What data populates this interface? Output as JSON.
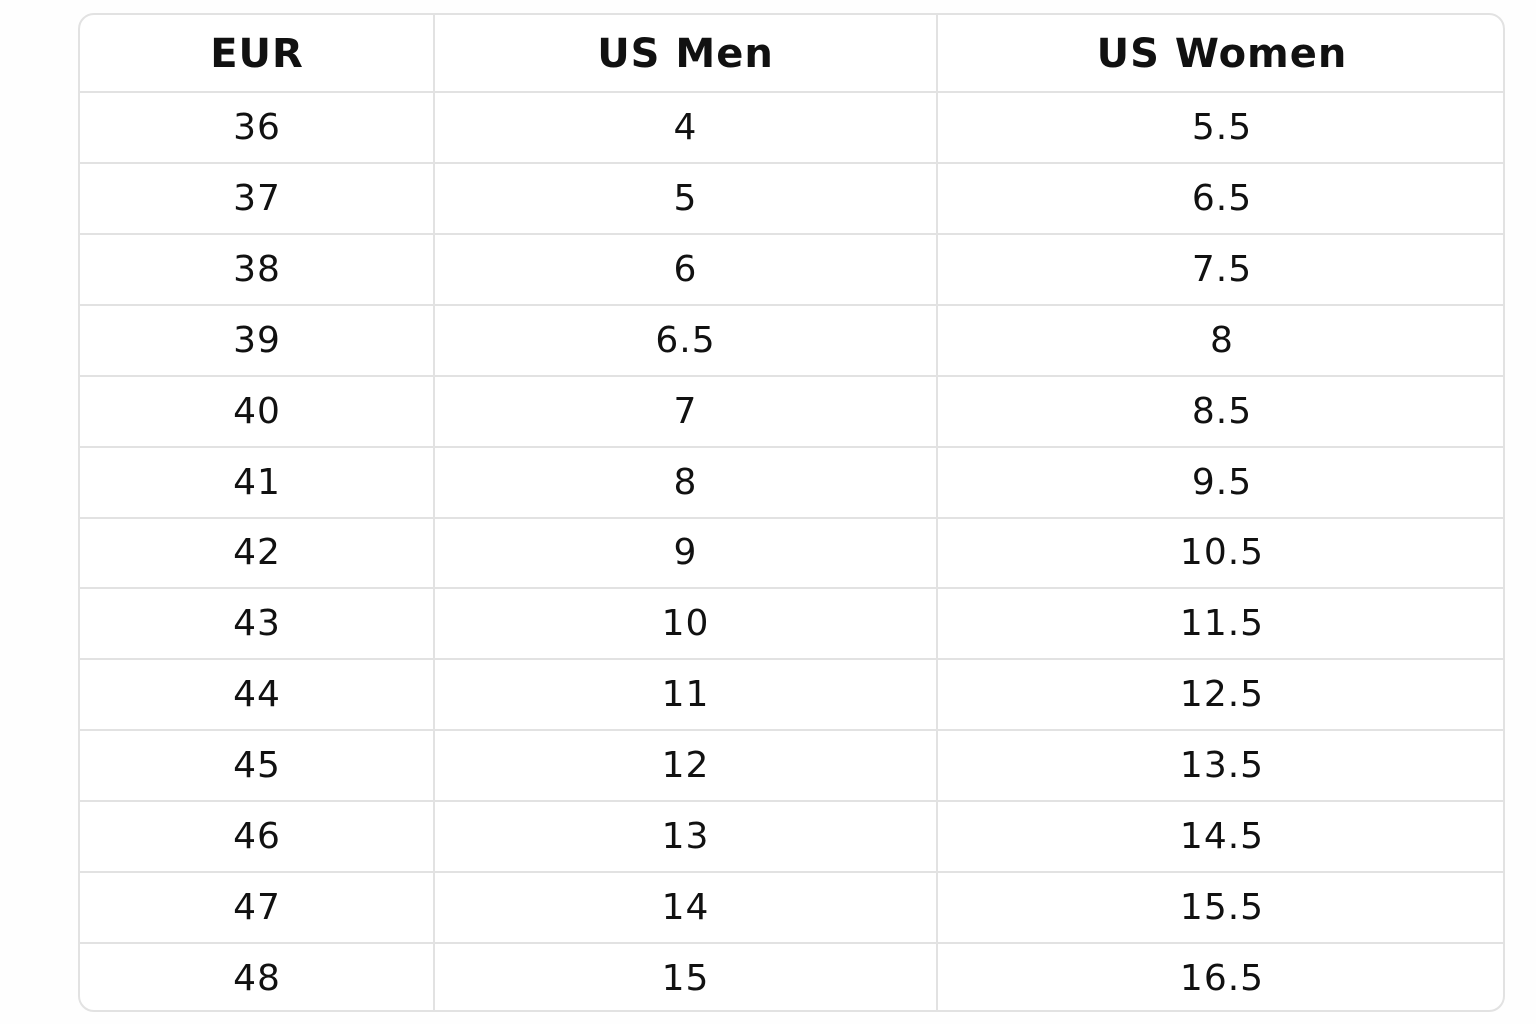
{
  "table": {
    "header": [
      "EUR",
      "US Men",
      "US Women"
    ],
    "rows": [
      [
        "36",
        "4",
        "5.5"
      ],
      [
        "37",
        "5",
        "6.5"
      ],
      [
        "38",
        "6",
        "7.5"
      ],
      [
        "39",
        "6.5",
        "8"
      ],
      [
        "40",
        "7",
        "8.5"
      ],
      [
        "41",
        "8",
        "9.5"
      ],
      [
        "42",
        "9",
        "10.5"
      ],
      [
        "43",
        "10",
        "11.5"
      ],
      [
        "44",
        "11",
        "12.5"
      ],
      [
        "45",
        "12",
        "13.5"
      ],
      [
        "46",
        "13",
        "14.5"
      ],
      [
        "47",
        "14",
        "15.5"
      ],
      [
        "48",
        "15",
        "16.5"
      ]
    ]
  }
}
